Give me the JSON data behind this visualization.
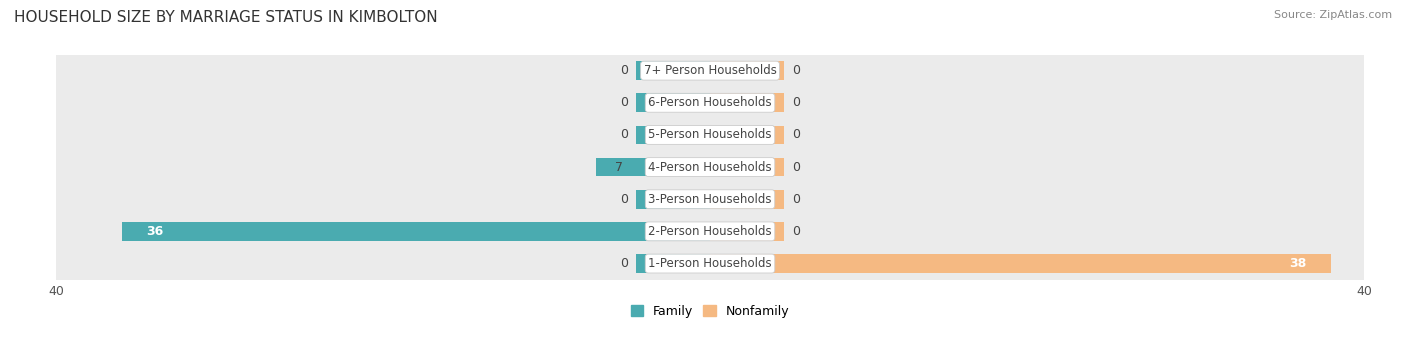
{
  "title": "HOUSEHOLD SIZE BY MARRIAGE STATUS IN KIMBOLTON",
  "source": "Source: ZipAtlas.com",
  "categories": [
    "7+ Person Households",
    "6-Person Households",
    "5-Person Households",
    "4-Person Households",
    "3-Person Households",
    "2-Person Households",
    "1-Person Households"
  ],
  "family_values": [
    0,
    0,
    0,
    7,
    0,
    36,
    0
  ],
  "nonfamily_values": [
    0,
    0,
    0,
    0,
    0,
    0,
    38
  ],
  "family_color": "#4AABB0",
  "nonfamily_color": "#F5B982",
  "row_bg_color": "#EBEBEB",
  "xlim": 40,
  "label_bg_color": "#FFFFFF",
  "title_fontsize": 11,
  "source_fontsize": 8,
  "tick_fontsize": 9,
  "bar_label_fontsize": 9,
  "category_fontsize": 8.5,
  "stub_size": 4.5
}
